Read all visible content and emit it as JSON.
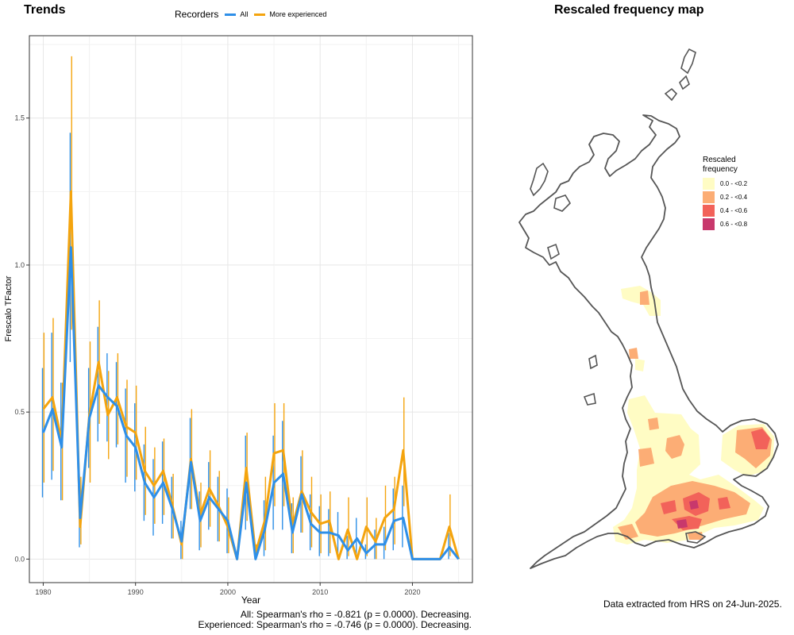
{
  "trends": {
    "title": "Trends"
  },
  "map": {
    "title": "Rescaled frequency map",
    "legend_title_1": "Rescaled",
    "legend_title_2": "frequency",
    "legend": [
      {
        "label": "0.0 - <0.2",
        "color": "#FFFCC4"
      },
      {
        "label": "0.2 - <0.4",
        "color": "#FCAD75"
      },
      {
        "label": "0.4 - <0.6",
        "color": "#F2625A"
      },
      {
        "label": "0.6 - <0.8",
        "color": "#C8386C"
      }
    ]
  },
  "legend": {
    "title": "Recorders",
    "all_label": "All",
    "exp_label": "More experienced",
    "all_color": "#2E8FE8",
    "exp_color": "#F4A40E"
  },
  "stats": {
    "all": "All: Spearman's rho = -0.821 (p = 0.0000). Decreasing.",
    "experienced": "Experienced: Spearman's rho = -0.746 (p = 0.0000). Decreasing."
  },
  "credit": "Data extracted from HRS on 24-Jun-2025.",
  "chart_data": {
    "type": "line",
    "xlabel": "Year",
    "ylabel": "Frescalo TFactor",
    "xlim": [
      1978.5,
      1926.5
    ],
    "ylim": [
      -0.08,
      1.78
    ],
    "xticks": [
      1980,
      1990,
      2000,
      2010,
      2020
    ],
    "yticks": [
      0.0,
      0.5,
      1.0,
      1.5
    ],
    "ytick_labels": [
      "0.0",
      "0.5",
      "1.0",
      "1.5"
    ],
    "grid": true,
    "legend_position": "top",
    "x": [
      1980,
      1981,
      1982,
      1983,
      1984,
      1985,
      1986,
      1987,
      1988,
      1989,
      1990,
      1991,
      1992,
      1993,
      1994,
      1995,
      1996,
      1997,
      1998,
      1999,
      2000,
      2001,
      2002,
      2003,
      2004,
      2005,
      2006,
      2007,
      2008,
      2009,
      2010,
      2011,
      2012,
      2013,
      2014,
      2015,
      2016,
      2017,
      2018,
      2019,
      2020,
      2021,
      2022,
      2023,
      2024,
      2025
    ],
    "series": [
      {
        "name": "All",
        "values": [
          0.43,
          0.51,
          0.38,
          1.06,
          0.14,
          0.48,
          0.59,
          0.55,
          0.52,
          0.42,
          0.38,
          0.26,
          0.21,
          0.26,
          0.17,
          0.06,
          0.33,
          0.13,
          0.21,
          0.17,
          0.13,
          0.0,
          0.26,
          0.0,
          0.1,
          0.26,
          0.29,
          0.09,
          0.22,
          0.12,
          0.09,
          0.09,
          0.08,
          0.03,
          0.07,
          0.02,
          0.05,
          0.05,
          0.13,
          0.14,
          0.0,
          0.0,
          0.0,
          0.0,
          0.04,
          0.0
        ],
        "lower": [
          0.21,
          0.27,
          0.2,
          0.67,
          0.04,
          0.31,
          0.4,
          0.4,
          0.38,
          0.26,
          0.23,
          0.13,
          0.08,
          0.12,
          0.07,
          0.0,
          0.17,
          0.03,
          0.1,
          0.06,
          0.02,
          0.0,
          0.1,
          0.0,
          0.01,
          0.1,
          0.1,
          0.02,
          0.09,
          0.03,
          0.01,
          0.01,
          0.01,
          0.0,
          0.01,
          0.0,
          0.0,
          0.0,
          0.03,
          0.04,
          0.0,
          0.0,
          0.0,
          0.0,
          0.0,
          0.0
        ],
        "upper": [
          0.65,
          0.77,
          0.6,
          1.45,
          0.27,
          0.65,
          0.79,
          0.7,
          0.67,
          0.58,
          0.53,
          0.39,
          0.34,
          0.4,
          0.28,
          0.13,
          0.48,
          0.23,
          0.33,
          0.28,
          0.24,
          0.0,
          0.42,
          0.0,
          0.2,
          0.42,
          0.47,
          0.19,
          0.35,
          0.22,
          0.18,
          0.17,
          0.16,
          0.08,
          0.14,
          0.05,
          0.1,
          0.11,
          0.24,
          0.25,
          0.0,
          0.0,
          0.0,
          0.0,
          0.09,
          0.0
        ]
      },
      {
        "name": "More experienced",
        "values": [
          0.51,
          0.55,
          0.4,
          1.25,
          0.11,
          0.49,
          0.67,
          0.49,
          0.55,
          0.45,
          0.43,
          0.3,
          0.25,
          0.3,
          0.18,
          0.05,
          0.34,
          0.15,
          0.24,
          0.18,
          0.11,
          0.0,
          0.31,
          0.02,
          0.13,
          0.36,
          0.37,
          0.11,
          0.23,
          0.16,
          0.12,
          0.13,
          0.0,
          0.1,
          0.0,
          0.11,
          0.06,
          0.14,
          0.17,
          0.37,
          0.0,
          0.0,
          0.0,
          0.0,
          0.11,
          0.0
        ],
        "lower": [
          0.26,
          0.3,
          0.2,
          0.78,
          0.05,
          0.26,
          0.46,
          0.34,
          0.39,
          0.28,
          0.27,
          0.15,
          0.12,
          0.15,
          0.07,
          0.0,
          0.17,
          0.04,
          0.11,
          0.06,
          0.02,
          0.0,
          0.13,
          0.0,
          0.03,
          0.18,
          0.18,
          0.02,
          0.09,
          0.04,
          0.02,
          0.02,
          0.0,
          0.01,
          0.0,
          0.01,
          0.0,
          0.03,
          0.05,
          0.18,
          0.0,
          0.0,
          0.0,
          0.0,
          0.01,
          0.0
        ],
        "upper": [
          0.77,
          0.82,
          0.6,
          1.71,
          0.28,
          0.74,
          0.88,
          0.64,
          0.7,
          0.61,
          0.59,
          0.45,
          0.38,
          0.41,
          0.29,
          0.11,
          0.51,
          0.26,
          0.37,
          0.3,
          0.21,
          0.0,
          0.43,
          0.05,
          0.28,
          0.53,
          0.53,
          0.21,
          0.37,
          0.28,
          0.22,
          0.23,
          0.0,
          0.21,
          0.0,
          0.21,
          0.14,
          0.25,
          0.28,
          0.55,
          0.0,
          0.0,
          0.0,
          0.0,
          0.22,
          0.0
        ]
      }
    ]
  }
}
